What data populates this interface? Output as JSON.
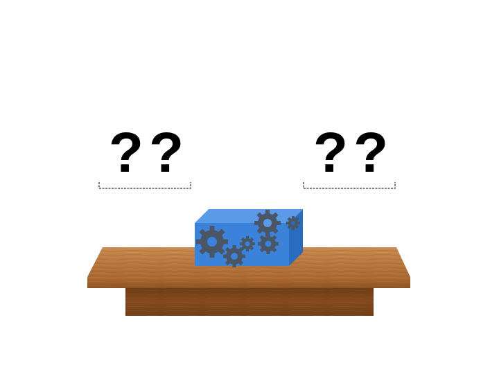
{
  "left_unknown": {
    "text": "??"
  },
  "right_unknown": {
    "text": "??"
  },
  "colors": {
    "box_front": "#3b82db",
    "box_top": "#5a9ae6",
    "box_side": "#2a6cc0",
    "gear": "#4a5566",
    "table_top": "#b9783f",
    "table_edge": "#9a5a25",
    "table_base": "#7a4418",
    "blank_line": "#555555"
  },
  "icons": {
    "box": "gear-box-icon",
    "table": "wooden-table-icon"
  }
}
